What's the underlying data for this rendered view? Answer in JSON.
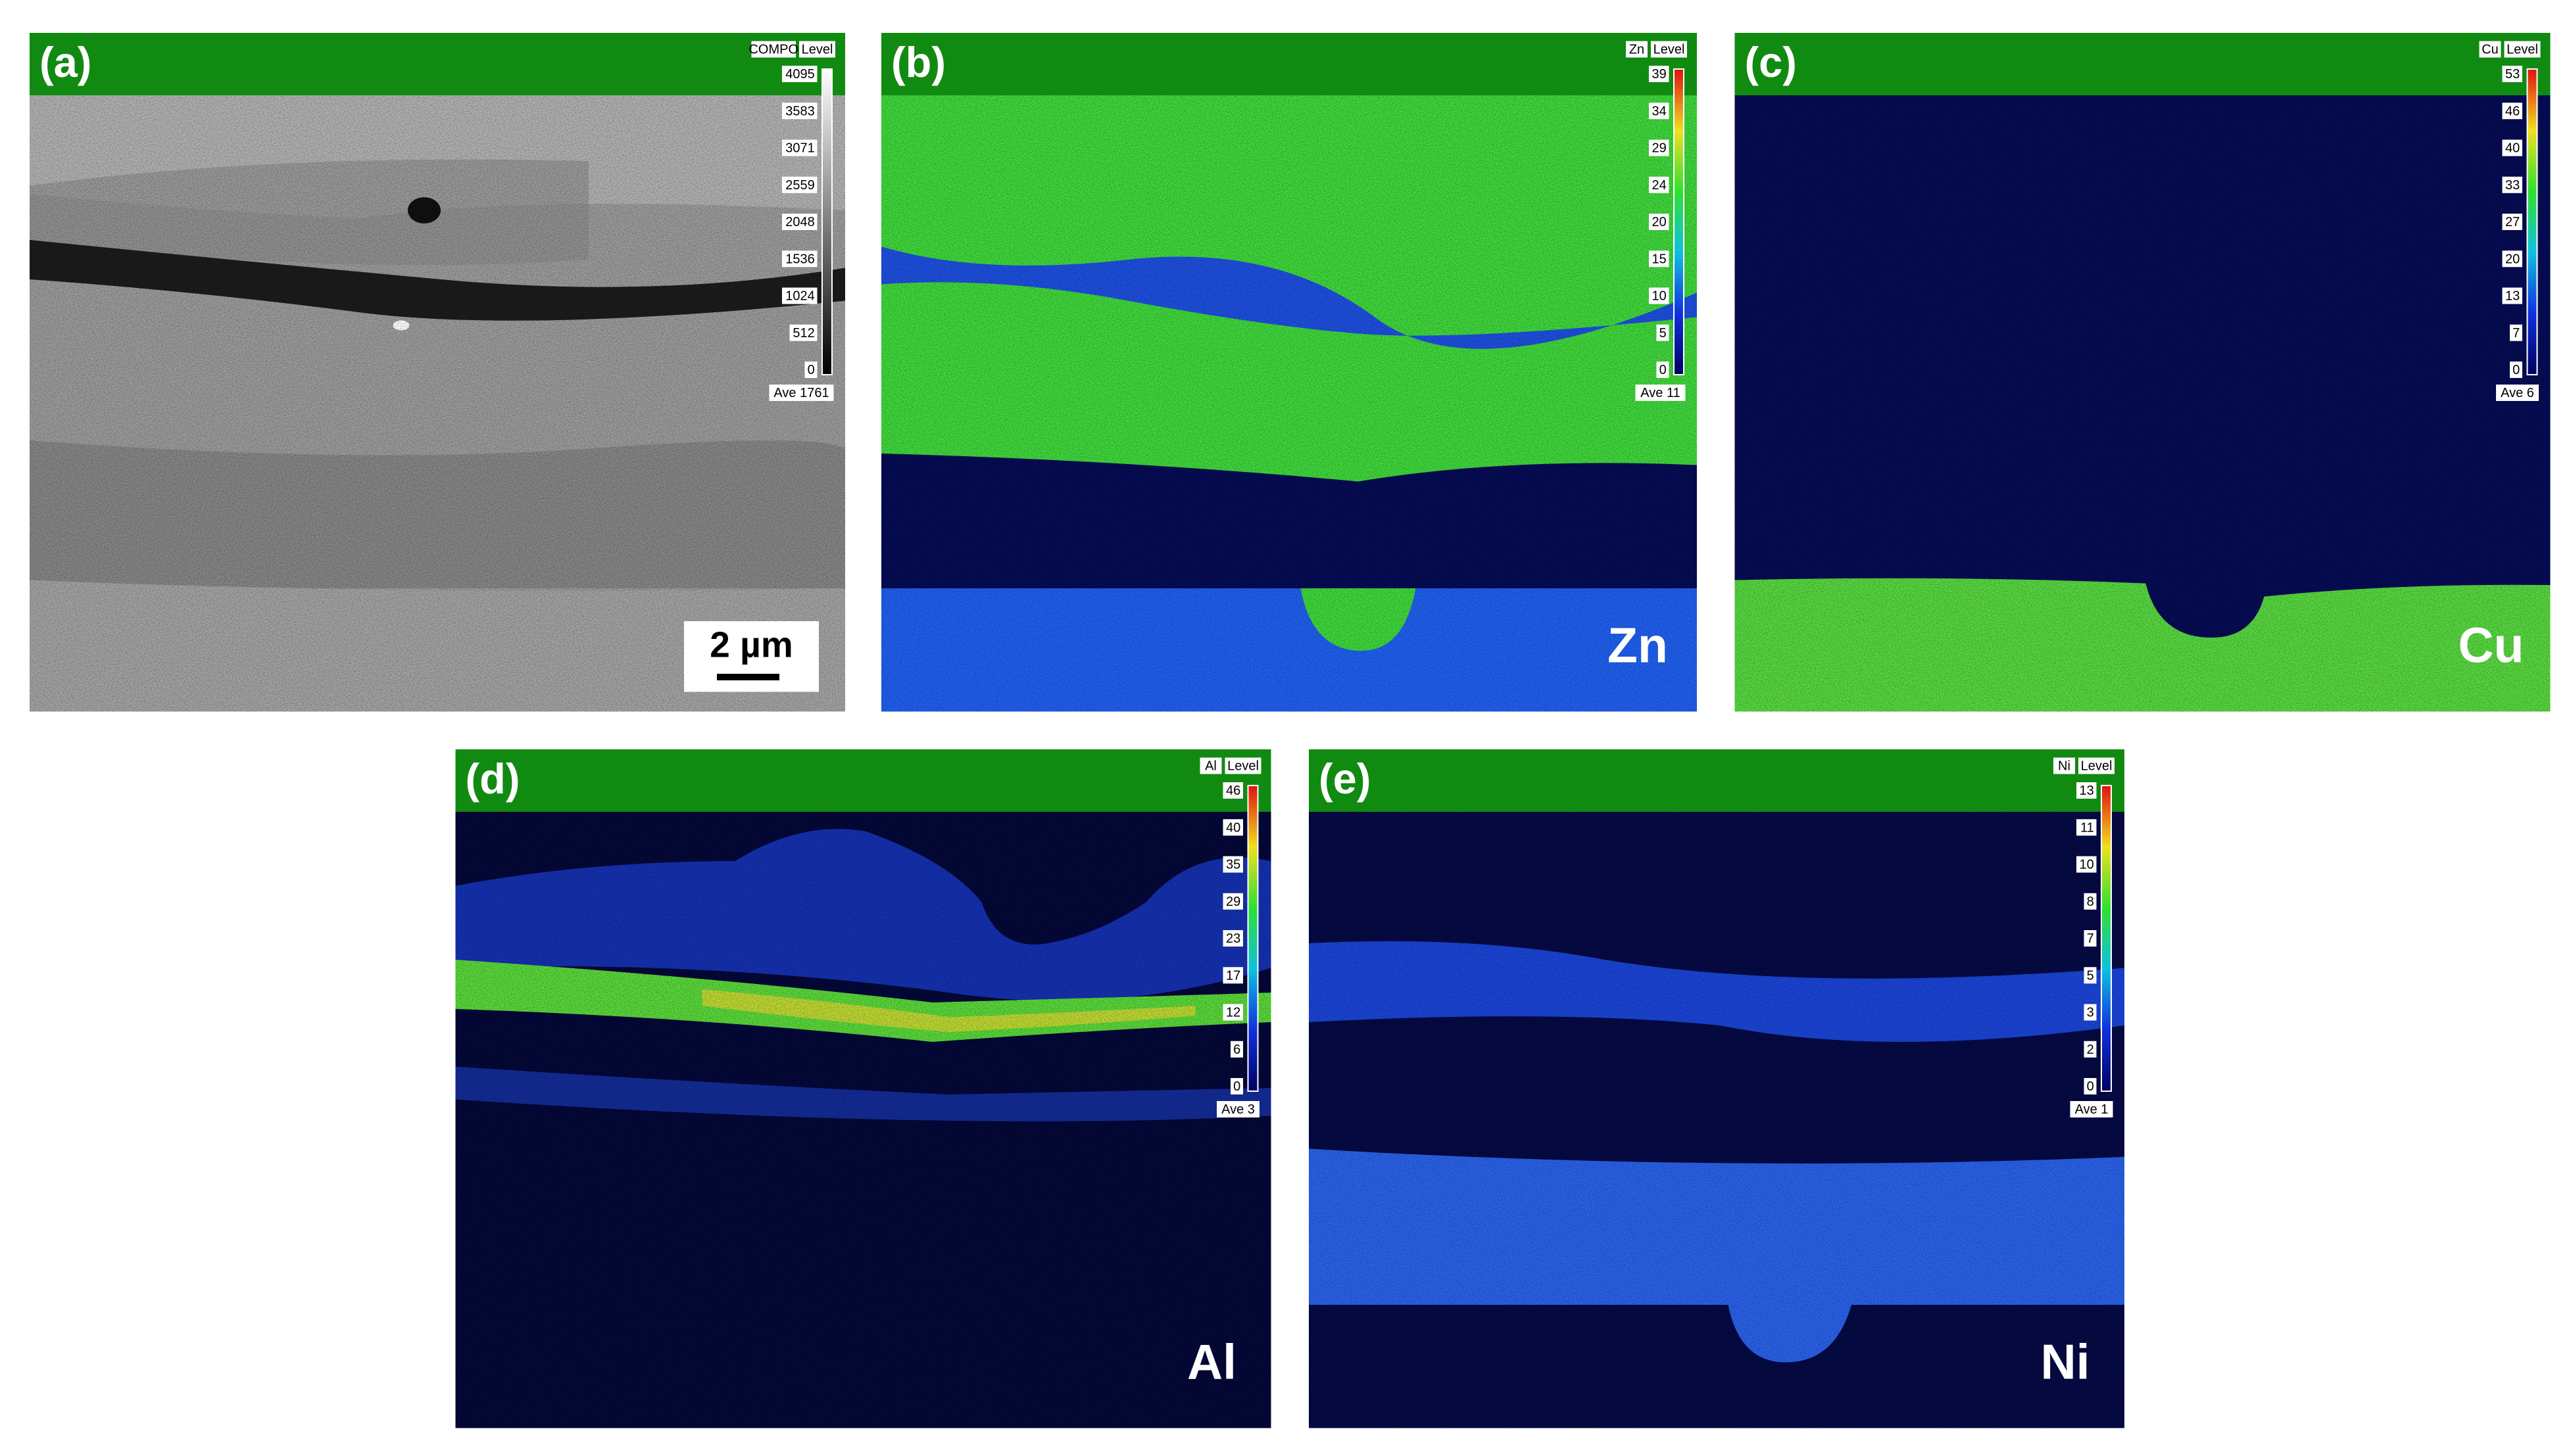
{
  "panels": [
    {
      "label": "(a)",
      "header": "COMPO",
      "level": "Level",
      "scale": [
        4095,
        3583,
        3071,
        2559,
        2048,
        1536,
        1024,
        512,
        0
      ],
      "ave": "Ave 1761",
      "scale_bar": "2 µm"
    },
    {
      "label": "(b)",
      "header": "Zn",
      "level": "Level",
      "scale": [
        39,
        34,
        29,
        24,
        20,
        15,
        10,
        5,
        0
      ],
      "ave": "Ave 11",
      "element": "Zn"
    },
    {
      "label": "(c)",
      "header": "Cu",
      "level": "Level",
      "scale": [
        53,
        46,
        40,
        33,
        27,
        20,
        13,
        7,
        0
      ],
      "ave": "Ave 6",
      "element": "Cu"
    },
    {
      "label": "(d)",
      "header": "Al",
      "level": "Level",
      "scale": [
        46,
        40,
        35,
        29,
        23,
        17,
        12,
        6,
        0
      ],
      "ave": "Ave 3",
      "element": "Al"
    },
    {
      "label": "(e)",
      "header": "Ni",
      "level": "Level",
      "scale": [
        13,
        11,
        10,
        8,
        7,
        5,
        3,
        2,
        0
      ],
      "ave": "Ave 1",
      "element": "Ni"
    }
  ]
}
